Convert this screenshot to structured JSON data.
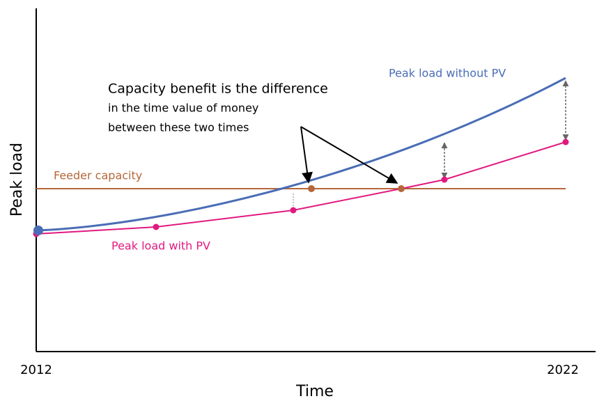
{
  "axes": {
    "y_label": "Peak load",
    "x_label": "Time",
    "x_start": "2012",
    "x_end": "2022"
  },
  "labels": {
    "feeder": "Feeder capacity",
    "without_pv": "Peak load without PV",
    "with_pv": "Peak load with PV"
  },
  "annotation": [
    "Capacity benefit is the difference",
    "in the time value of money",
    "between these two times"
  ]
}
